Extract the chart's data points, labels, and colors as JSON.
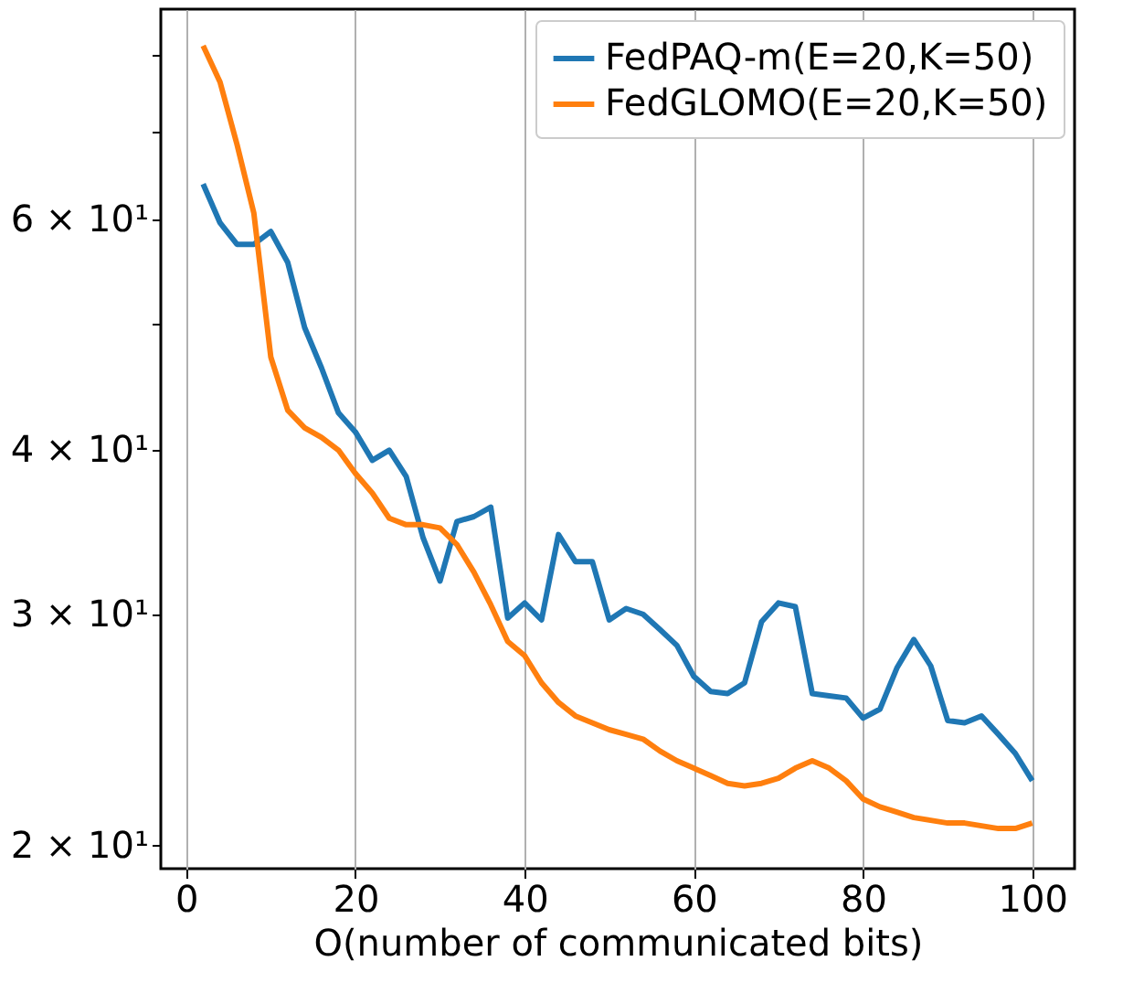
{
  "chart_data": {
    "type": "line",
    "xlabel": "O(number of communicated bits)",
    "x": [
      2,
      4,
      6,
      8,
      10,
      12,
      14,
      16,
      18,
      20,
      22,
      24,
      26,
      28,
      30,
      32,
      34,
      36,
      38,
      40,
      42,
      44,
      46,
      48,
      50,
      52,
      54,
      56,
      58,
      60,
      62,
      64,
      66,
      68,
      70,
      72,
      74,
      76,
      78,
      80,
      82,
      84,
      86,
      88,
      90,
      92,
      94,
      96,
      98,
      100
    ],
    "series": [
      {
        "name": "FedPAQ-m(E=20,K=50)",
        "color": "#1f77b4",
        "values": [
          63.8,
          59.6,
          57.4,
          57.4,
          58.7,
          55.6,
          49.6,
          46.2,
          42.7,
          41.3,
          39.3,
          40.0,
          38.2,
          34.3,
          31.8,
          35.3,
          35.6,
          36.2,
          29.8,
          30.6,
          29.7,
          34.5,
          32.9,
          32.9,
          29.7,
          30.3,
          30.0,
          29.2,
          28.4,
          26.9,
          26.2,
          26.1,
          26.6,
          29.6,
          30.6,
          30.4,
          26.1,
          26.0,
          25.9,
          25.0,
          25.4,
          27.3,
          28.7,
          27.4,
          24.9,
          24.8,
          25.1,
          24.3,
          23.5,
          22.4
        ]
      },
      {
        "name": "FedGLOMO(E=20,K=50)",
        "color": "#ff7f0e",
        "values": [
          81.3,
          76.3,
          68.4,
          60.6,
          47.1,
          42.9,
          41.6,
          40.9,
          40.0,
          38.4,
          37.1,
          35.5,
          35.1,
          35.1,
          34.9,
          33.9,
          32.3,
          30.5,
          28.6,
          27.9,
          26.6,
          25.7,
          25.1,
          24.8,
          24.5,
          24.3,
          24.1,
          23.6,
          23.2,
          22.9,
          22.6,
          22.3,
          22.2,
          22.3,
          22.5,
          22.9,
          23.2,
          22.9,
          22.4,
          21.7,
          21.4,
          21.2,
          21.0,
          20.9,
          20.8,
          20.8,
          20.7,
          20.6,
          20.6,
          20.8
        ]
      }
    ],
    "xlim": [
      -3,
      105
    ],
    "xticks": [
      0,
      20,
      40,
      60,
      80,
      100
    ],
    "ylim": [
      19.2,
      86.7
    ],
    "yticks": [
      {
        "value": 20,
        "label": "2 × 10¹"
      },
      {
        "value": 30,
        "label": "3 × 10¹"
      },
      {
        "value": 40,
        "label": "4 × 10¹"
      },
      {
        "value": 50,
        "label": null
      },
      {
        "value": 60,
        "label": "6 × 10¹"
      },
      {
        "value": 70,
        "label": null
      },
      {
        "value": 80,
        "label": null
      }
    ],
    "log": true,
    "grid": "x",
    "legend": "top right",
    "marker": "none",
    "line_style": "solid"
  }
}
